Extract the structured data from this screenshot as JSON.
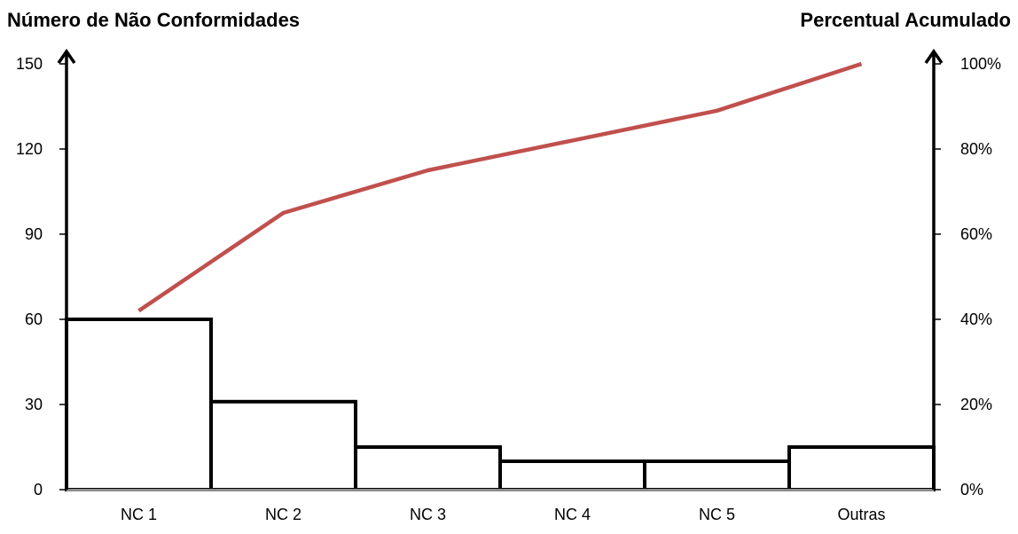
{
  "chart_data": {
    "type": "bar",
    "subtype": "pareto",
    "categories": [
      "NC 1",
      "NC 2",
      "NC 3",
      "NC 4",
      "NC 5",
      "Outras"
    ],
    "series": [
      {
        "type": "bar",
        "axis": "left",
        "values": [
          60,
          31,
          15,
          10,
          10,
          15
        ],
        "color": "#000000"
      },
      {
        "type": "line",
        "axis": "right",
        "values": [
          42,
          65,
          75,
          82,
          89,
          100
        ],
        "color": "#c0504d"
      }
    ],
    "ylabel_left": "Número de Não Conformidades",
    "ylabel_right": "Percentual Acumulado",
    "ylim_left": [
      0,
      150
    ],
    "ylim_right": [
      0,
      100
    ],
    "yticks_left": [
      "0",
      "30",
      "60",
      "90",
      "120",
      "150"
    ],
    "yticks_right": [
      "0%",
      "20%",
      "40%",
      "60%",
      "80%",
      "100%"
    ],
    "grid": false,
    "legend": "none"
  }
}
